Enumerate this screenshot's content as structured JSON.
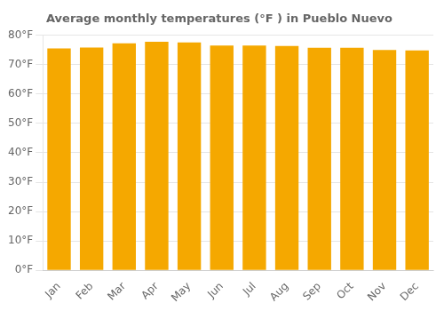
{
  "chart_data": {
    "type": "bar",
    "title": "Average monthly temperatures (°F ) in Pueblo Nuevo",
    "categories": [
      "Jan",
      "Feb",
      "Mar",
      "Apr",
      "May",
      "Jun",
      "Jul",
      "Aug",
      "Sep",
      "Oct",
      "Nov",
      "Dec"
    ],
    "values": [
      75.5,
      75.8,
      77.2,
      77.8,
      77.5,
      76.5,
      76.5,
      76.3,
      75.7,
      75.7,
      75.0,
      74.8
    ],
    "color": "#F5A800",
    "ylim": [
      0,
      80
    ],
    "yticks": [
      {
        "value": 0,
        "label": "0°F"
      },
      {
        "value": 10,
        "label": "10°F"
      },
      {
        "value": 20,
        "label": "20°F"
      },
      {
        "value": 30,
        "label": "30°F"
      },
      {
        "value": 40,
        "label": "40°F"
      },
      {
        "value": 50,
        "label": "50°F"
      },
      {
        "value": 60,
        "label": "60°F"
      },
      {
        "value": 70,
        "label": "70°F"
      },
      {
        "value": 80,
        "label": "80°F"
      }
    ],
    "grid": true
  }
}
